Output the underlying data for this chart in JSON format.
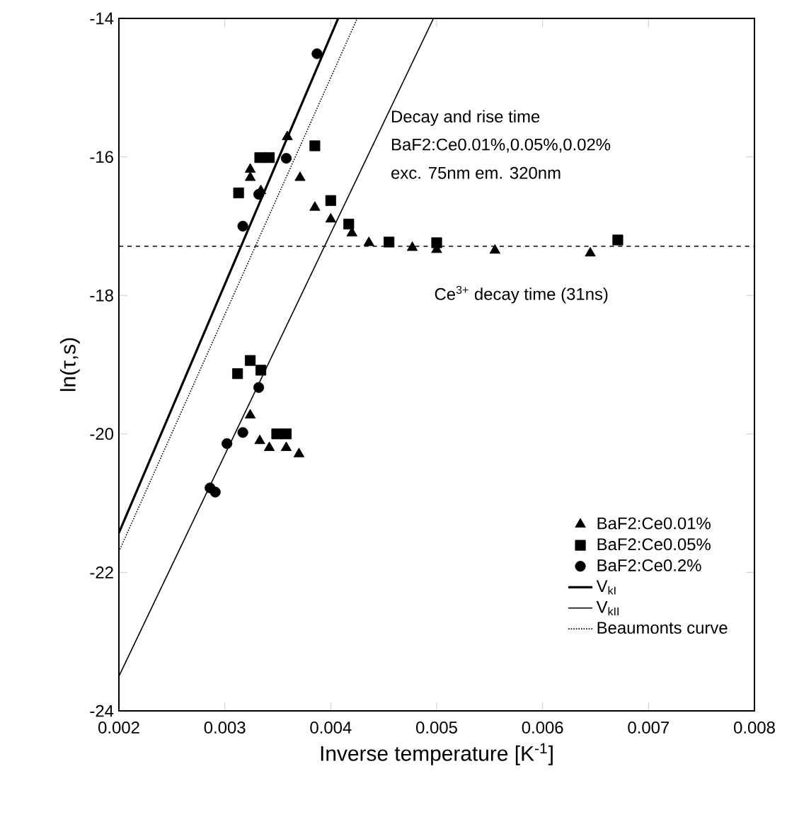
{
  "chart_data": {
    "type": "scatter",
    "xlabel": "Inverse temperature [K$^{-1}$]",
    "ylabel": "ln(τ,s)",
    "xlim": [
      0.002,
      0.008
    ],
    "ylim": [
      -24,
      -14
    ],
    "xticks": [
      0.002,
      0.003,
      0.004,
      0.005,
      0.006,
      0.007,
      0.008
    ],
    "yticks": [
      -24,
      -22,
      -20,
      -18,
      -16,
      -14
    ],
    "legend": "bottom right",
    "grid": false,
    "series": [
      {
        "name": "BaF2:Ce0.01%",
        "marker": "triangle",
        "color": "#000000",
        "x": [
          0.00359,
          0.00324,
          0.00324,
          0.00334,
          0.00371,
          0.00385,
          0.004,
          0.0042,
          0.00436,
          0.00477,
          0.005,
          0.00555,
          0.00645,
          0.00324,
          0.00333,
          0.00342,
          0.00358,
          0.0037
        ],
        "values": [
          -15.71,
          -16.18,
          -16.3,
          -16.49,
          -16.3,
          -16.73,
          -16.9,
          -17.1,
          -17.24,
          -17.31,
          -17.34,
          -17.35,
          -17.39,
          -19.73,
          -20.1,
          -20.2,
          -20.2,
          -20.29
        ]
      },
      {
        "name": "BaF2:Ce0.05%",
        "marker": "square",
        "color": "#000000",
        "x": [
          0.00313,
          0.00333,
          0.00342,
          0.00385,
          0.004,
          0.00417,
          0.00455,
          0.005,
          0.00671,
          0.00312,
          0.00324,
          0.00334,
          0.00349,
          0.00358
        ],
        "values": [
          -16.52,
          -16.01,
          -16.01,
          -15.84,
          -16.63,
          -16.97,
          -17.23,
          -17.24,
          -17.2,
          -19.13,
          -18.94,
          -19.08,
          -20.0,
          -20.0
        ]
      },
      {
        "name": "BaF2:Ce0.2%",
        "marker": "circle",
        "color": "#000000",
        "x": [
          0.00387,
          0.00358,
          0.00332,
          0.00317,
          0.00332,
          0.00317,
          0.00302,
          0.00286,
          0.00291
        ],
        "values": [
          -14.51,
          -16.02,
          -16.54,
          -17.0,
          -19.33,
          -19.98,
          -20.14,
          -20.78,
          -20.84
        ]
      },
      {
        "name": "V$_{kI}$",
        "type": "line",
        "marker": "none",
        "line_style": "solid",
        "color": "#000000",
        "x": [
          0.002,
          0.00407
        ],
        "values": [
          -21.43,
          -14
        ]
      },
      {
        "name": "V$_{kII}$",
        "type": "line",
        "marker": "none",
        "line_style": "solid",
        "color": "#000000",
        "x": [
          0.002,
          0.00497
        ],
        "values": [
          -23.5,
          -14
        ]
      },
      {
        "name": "Beaumonts curve",
        "type": "line",
        "marker": "none",
        "line_style": "dotted",
        "color": "#000000",
        "x": [
          0.002,
          0.00425
        ],
        "values": [
          -21.7,
          -14
        ]
      }
    ],
    "ref_lines": [
      {
        "axis": "y",
        "value": -17.29,
        "label": "Ce$^{3+}$ decay time (31ns)",
        "line_style": "dashed",
        "color": "#000000"
      }
    ],
    "annotations": [
      "Decay and rise time",
      "BaF2:Ce0.01%,0.05%,0.02%",
      "exc. 75nm em. 320nm"
    ]
  }
}
